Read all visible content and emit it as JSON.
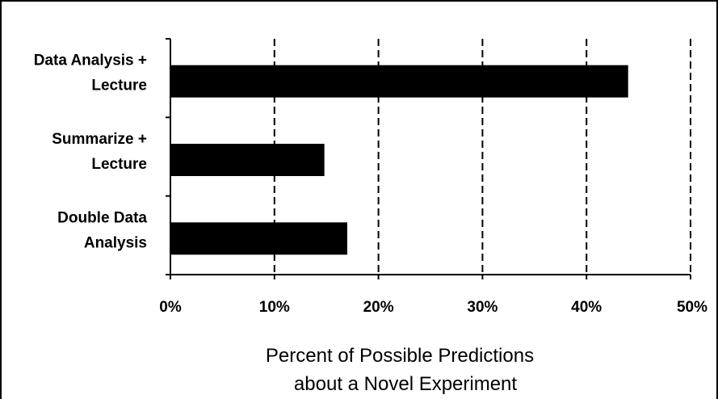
{
  "chart_data": {
    "type": "bar",
    "orientation": "horizontal",
    "categories": [
      [
        "Data Analysis +",
        "Lecture"
      ],
      [
        "Summarize +",
        "Lecture"
      ],
      [
        "Double Data",
        "Analysis"
      ]
    ],
    "values": [
      0.44,
      0.148,
      0.17
    ],
    "xlim": [
      0,
      0.5
    ],
    "xticks": [
      "0%",
      "10%",
      "20%",
      "30%",
      "40%",
      "50%"
    ],
    "xlabel": [
      "Percent of Possible Predictions",
      "about a Novel Experiment"
    ],
    "grid": "dashed vertical",
    "bar_color": "#000000"
  }
}
